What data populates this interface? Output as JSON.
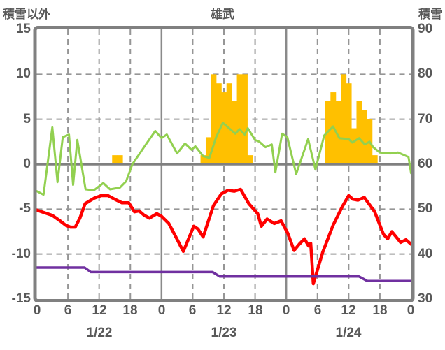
{
  "header": {
    "left_axis_title": "積雪以外",
    "station": "雄武",
    "right_axis_title": "積雪"
  },
  "chart_data": {
    "type": "line",
    "title": "雄武",
    "left_axis": {
      "label": "積雪以外",
      "min": -15,
      "max": 15,
      "ticks": [
        "15",
        "10",
        "5",
        "0",
        "-5",
        "-10",
        "-15"
      ]
    },
    "right_axis": {
      "label": "積雪",
      "min": 30,
      "max": 90,
      "ticks": [
        "90",
        "80",
        "70",
        "60",
        "50",
        "40",
        "30"
      ]
    },
    "x_axis": {
      "min_hour": 0,
      "max_hour": 72,
      "tick_interval_hours": 6,
      "hour_labels": [
        "0",
        "6",
        "12",
        "18",
        "0",
        "6",
        "12",
        "18",
        "0",
        "6",
        "12",
        "18",
        "0"
      ],
      "date_labels": [
        {
          "label": "1/22",
          "hour": 12
        },
        {
          "label": "1/23",
          "hour": 36
        },
        {
          "label": "1/24",
          "hour": 60
        }
      ]
    },
    "grid": {
      "h_dashed_at": [
        10,
        5,
        -5,
        -10
      ],
      "v_dashed_at_hours": [
        6,
        12,
        18,
        30,
        36,
        42,
        54,
        60,
        66
      ],
      "v_solid_at_hours": [
        24,
        48
      ],
      "dash_color": "#969696",
      "solid_color": "#8a8a8a",
      "zero_line_color": "#808080",
      "frame_color": "#808080"
    },
    "series": [
      {
        "name": "snowfall-bars",
        "type": "bar",
        "axis": "left",
        "color": "#FFC000",
        "points": [
          [
            15,
            1
          ],
          [
            16,
            1
          ],
          [
            32,
            1
          ],
          [
            33,
            3
          ],
          [
            34,
            10
          ],
          [
            35,
            9
          ],
          [
            36,
            8
          ],
          [
            37,
            9
          ],
          [
            38,
            7
          ],
          [
            39,
            10
          ],
          [
            40,
            10
          ],
          [
            41,
            1
          ],
          [
            56,
            7
          ],
          [
            57,
            8
          ],
          [
            58,
            7
          ],
          [
            59,
            10
          ],
          [
            60,
            9
          ],
          [
            61,
            4
          ],
          [
            62,
            7
          ],
          [
            63,
            6
          ],
          [
            64,
            5
          ],
          [
            65,
            1
          ]
        ]
      },
      {
        "name": "green-line",
        "type": "line",
        "axis": "left",
        "color": "#92D050",
        "width": 3,
        "points": [
          [
            0,
            -3.0
          ],
          [
            1.3,
            -3.4
          ],
          [
            3,
            4.1
          ],
          [
            4,
            -2.0
          ],
          [
            5,
            3.0
          ],
          [
            6.2,
            3.3
          ],
          [
            7,
            -2.3
          ],
          [
            7.8,
            2.7
          ],
          [
            9.4,
            -2.8
          ],
          [
            11,
            -2.9
          ],
          [
            12.8,
            -2.1
          ],
          [
            14.1,
            -2.8
          ],
          [
            16,
            -2.6
          ],
          [
            17.2,
            -1.9
          ],
          [
            18.4,
            0.0
          ],
          [
            19.7,
            1.1
          ],
          [
            21,
            2.2
          ],
          [
            22.8,
            3.7
          ],
          [
            24,
            2.9
          ],
          [
            25,
            3.3
          ],
          [
            27,
            1.2
          ],
          [
            28.5,
            2.3
          ],
          [
            29.8,
            1.6
          ],
          [
            30.5,
            2.0
          ],
          [
            32,
            0.9
          ],
          [
            33.2,
            0.7
          ],
          [
            34.5,
            3.0
          ],
          [
            35.8,
            4.6
          ],
          [
            37.2,
            3.9
          ],
          [
            38.2,
            3.4
          ],
          [
            39,
            3.9
          ],
          [
            40,
            3.3
          ],
          [
            40.6,
            4.0
          ],
          [
            42,
            2.7
          ],
          [
            42.8,
            2.5
          ],
          [
            44,
            1.9
          ],
          [
            45.2,
            2.2
          ],
          [
            45.9,
            -0.9
          ],
          [
            47.2,
            3.4
          ],
          [
            48.2,
            3.0
          ],
          [
            49.9,
            -1.1
          ],
          [
            52.2,
            2.8
          ],
          [
            53.6,
            -0.6
          ],
          [
            55.3,
            3.2
          ],
          [
            57,
            4.2
          ],
          [
            58.2,
            2.9
          ],
          [
            60,
            2.8
          ],
          [
            60.7,
            2.4
          ],
          [
            62,
            2.9
          ],
          [
            63.1,
            2.2
          ],
          [
            64,
            2.5
          ],
          [
            64.7,
            1.9
          ],
          [
            66,
            1.3
          ],
          [
            68,
            1.2
          ],
          [
            69.5,
            1.3
          ],
          [
            70.7,
            1.0
          ],
          [
            71.5,
            0.8
          ],
          [
            72,
            -1.0
          ]
        ]
      },
      {
        "name": "temperature-red-line",
        "type": "line",
        "axis": "left",
        "color": "#FF0000",
        "width": 4.5,
        "points": [
          [
            0,
            -5.1
          ],
          [
            1,
            -5.3
          ],
          [
            3,
            -5.7
          ],
          [
            4.5,
            -6.3
          ],
          [
            5.6,
            -6.8
          ],
          [
            6.5,
            -7.0
          ],
          [
            7.4,
            -7.0
          ],
          [
            8.3,
            -6.0
          ],
          [
            9.3,
            -4.4
          ],
          [
            11,
            -3.8
          ],
          [
            12.4,
            -3.5
          ],
          [
            13.7,
            -3.5
          ],
          [
            15,
            -3.9
          ],
          [
            16.4,
            -4.3
          ],
          [
            17.7,
            -4.3
          ],
          [
            18.8,
            -5.3
          ],
          [
            19.7,
            -5.2
          ],
          [
            20.7,
            -5.7
          ],
          [
            21.7,
            -6.0
          ],
          [
            23.1,
            -5.5
          ],
          [
            24,
            -5.8
          ],
          [
            25.4,
            -6.6
          ],
          [
            26.5,
            -7.8
          ],
          [
            28.2,
            -9.7
          ],
          [
            30.2,
            -6.9
          ],
          [
            31,
            -7.2
          ],
          [
            32,
            -8.1
          ],
          [
            34,
            -4.6
          ],
          [
            35.5,
            -3.3
          ],
          [
            36.8,
            -2.9
          ],
          [
            38,
            -3.0
          ],
          [
            39.2,
            -2.8
          ],
          [
            40.8,
            -4.4
          ],
          [
            42.5,
            -5.5
          ],
          [
            43.2,
            -6.9
          ],
          [
            44.3,
            -6.1
          ],
          [
            45.7,
            -6.6
          ],
          [
            47,
            -6.3
          ],
          [
            48.3,
            -7.7
          ],
          [
            49.5,
            -9.6
          ],
          [
            50.5,
            -8.9
          ],
          [
            51.5,
            -8.3
          ],
          [
            52.3,
            -9.1
          ],
          [
            52.7,
            -8.8
          ],
          [
            53.2,
            -13.3
          ],
          [
            55,
            -9.8
          ],
          [
            57,
            -6.8
          ],
          [
            58.7,
            -4.8
          ],
          [
            60,
            -3.5
          ],
          [
            60.8,
            -3.9
          ],
          [
            61.8,
            -4.0
          ],
          [
            63,
            -3.7
          ],
          [
            65,
            -5.3
          ],
          [
            66.7,
            -7.8
          ],
          [
            67.5,
            -8.3
          ],
          [
            68.3,
            -7.5
          ],
          [
            70,
            -8.7
          ],
          [
            71,
            -8.4
          ],
          [
            72,
            -8.9
          ]
        ]
      },
      {
        "name": "snow-depth-purple-line",
        "type": "line",
        "axis": "right",
        "color": "#7030A0",
        "width": 3.5,
        "points": [
          [
            0,
            37
          ],
          [
            9.2,
            37
          ],
          [
            10.4,
            36
          ],
          [
            33.8,
            36
          ],
          [
            35.2,
            35
          ],
          [
            62,
            35
          ],
          [
            63.6,
            34
          ],
          [
            72,
            34
          ]
        ]
      }
    ]
  }
}
